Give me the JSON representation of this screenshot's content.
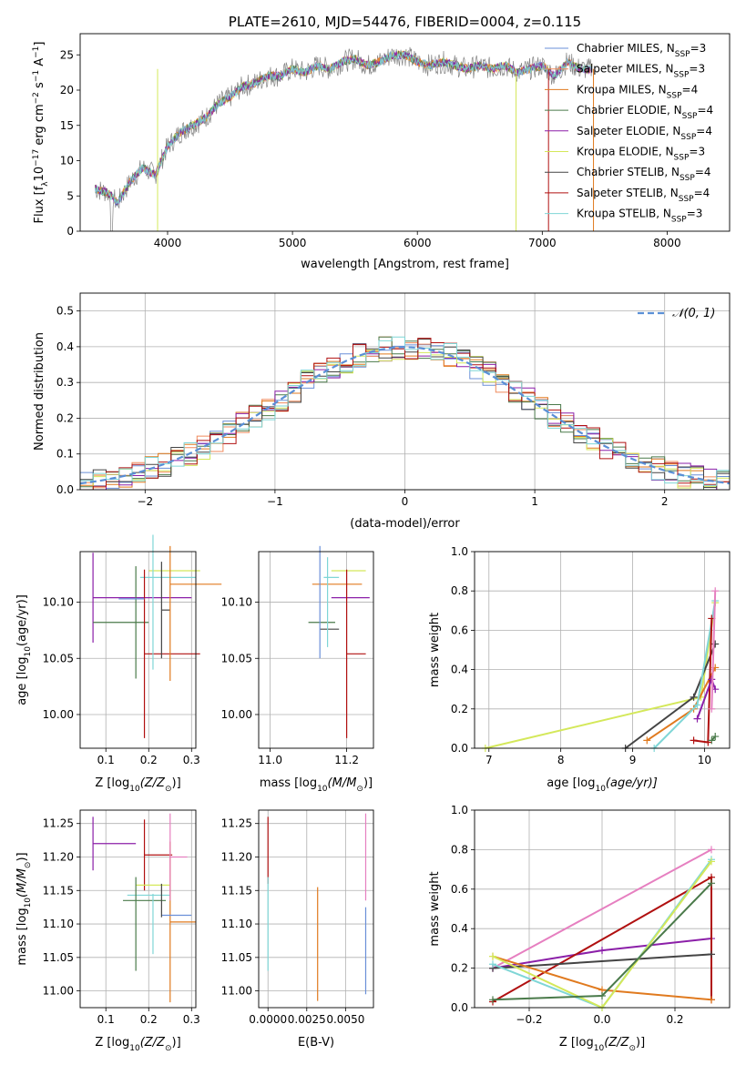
{
  "colors": {
    "chabrier_miles": "#6a8fd8",
    "salpeter_miles": "#f08a5c",
    "kroupa_miles": "#e07a1f",
    "chabrier_elodie": "#4a7a4a",
    "salpeter_elodie": "#8b1fa8",
    "kroupa_elodie": "#d4e85a",
    "chabrier_stelib": "#444444",
    "salpeter_stelib": "#b01010",
    "kroupa_stelib": "#7fd6d6",
    "spectrum_gray": "#777777",
    "pink": "#e67fc0",
    "normal": "#5a8fd6",
    "grid": "#b0b0b0"
  },
  "chart_data": [
    {
      "id": "spectrum",
      "type": "line",
      "title": "PLATE=2610, MJD=54476, FIBERID=0004, z=0.115",
      "xlabel": "wavelength [Angstrom, rest frame]",
      "ylabel_main": "Flux [f",
      "ylabel_sub": "λ",
      "ylabel_rest": "10",
      "ylabel_exp": "−17",
      "ylabel_tail": " erg cm",
      "ylabel_exp2": "−2",
      "ylabel_mid": " s",
      "ylabel_exp3": "−1",
      "ylabel_end": " A",
      "ylabel_exp4": "−1",
      "ylabel_close": "]",
      "xlim": [
        3300,
        8500
      ],
      "ylim": [
        0,
        28
      ],
      "xticks": [
        "4000",
        "5000",
        "6000",
        "7000",
        "8000"
      ],
      "yticks": [
        "0",
        "5",
        "10",
        "15",
        "20",
        "25"
      ],
      "legend": [
        {
          "name": "Chabrier MILES, N",
          "sub": "SSP",
          "suffix": "=3",
          "color_key": "chabrier_miles"
        },
        {
          "name": "Salpeter MILES, N",
          "sub": "SSP",
          "suffix": "=3",
          "color_key": "salpeter_miles"
        },
        {
          "name": "Kroupa MILES, N",
          "sub": "SSP",
          "suffix": "=4",
          "color_key": "kroupa_miles"
        },
        {
          "name": "Chabrier ELODIE, N",
          "sub": "SSP",
          "suffix": "=4",
          "color_key": "chabrier_elodie"
        },
        {
          "name": "Salpeter ELODIE, N",
          "sub": "SSP",
          "suffix": "=4",
          "color_key": "salpeter_elodie"
        },
        {
          "name": "Kroupa ELODIE, N",
          "sub": "SSP",
          "suffix": "=3",
          "color_key": "kroupa_elodie"
        },
        {
          "name": "Chabrier STELIB, N",
          "sub": "SSP",
          "suffix": "=4",
          "color_key": "chabrier_stelib"
        },
        {
          "name": "Salpeter STELIB, N",
          "sub": "SSP",
          "suffix": "=4",
          "color_key": "salpeter_stelib"
        },
        {
          "name": "Kroupa STELIB, N",
          "sub": "SSP",
          "suffix": "=3",
          "color_key": "kroupa_stelib"
        }
      ],
      "legend_position": "right",
      "series_envelope": {
        "x": [
          3420,
          3520,
          3600,
          3700,
          3800,
          3900,
          4000,
          4100,
          4200,
          4300,
          4400,
          4500,
          4600,
          4700,
          4800,
          4900,
          5000,
          5100,
          5200,
          5300,
          5400,
          5500,
          5600,
          5700,
          5800,
          5900,
          6000,
          6100,
          6200,
          6300,
          6400,
          6500,
          6600,
          6700,
          6800,
          6900,
          7000,
          7100,
          7200,
          7300,
          7400
        ],
        "y": [
          6,
          5.5,
          4,
          7,
          9,
          8,
          12,
          14,
          15,
          16,
          18,
          19,
          20.5,
          21,
          22,
          22,
          23,
          22.5,
          23.5,
          23,
          24,
          24.5,
          23.5,
          24,
          25,
          25,
          24,
          23.5,
          24,
          23.5,
          23,
          23.5,
          23,
          23.5,
          22.5,
          23,
          23.5,
          22,
          24,
          23,
          23
        ]
      }
    },
    {
      "id": "residuals",
      "type": "line",
      "xlabel": "(data-model)/error",
      "ylabel": "Normed distribution",
      "xlim": [
        -2.5,
        2.5
      ],
      "ylim": [
        0,
        0.55
      ],
      "xticks": [
        "−2",
        "−1",
        "0",
        "1",
        "2"
      ],
      "yticks": [
        "0.0",
        "0.1",
        "0.2",
        "0.3",
        "0.4",
        "0.5"
      ],
      "legend_label": "𝒩(0, 1)",
      "legend_position": "top-right",
      "grid": true
    },
    {
      "id": "age_vs_Z",
      "type": "scatter",
      "xlabel": "Z [log",
      "xlabel_sub": "10",
      "xlabel_tail": "(Z/Z",
      "xlabel_sun": "⊙",
      "xlabel_close": ")]",
      "ylabel": "age  [log",
      "ylabel_sub": "10",
      "ylabel_tail": "(age/yr)]",
      "xlim": [
        0.04,
        0.31
      ],
      "ylim": [
        9.97,
        10.145
      ],
      "xticks": [
        "0.1",
        "0.2",
        "0.3"
      ],
      "yticks": [
        "10.00",
        "10.05",
        "10.10"
      ],
      "points": [
        {
          "x": 0.07,
          "y": 10.104,
          "xerr": 0.23,
          "yerr": 0.04,
          "color_key": "salpeter_elodie"
        },
        {
          "x": 0.07,
          "y": 10.082,
          "xerr": 0.13,
          "yerr": 0.0,
          "color_key": "chabrier_elodie"
        },
        {
          "x": 0.18,
          "y": 10.122,
          "xerr": 0.13,
          "yerr": 0.0,
          "color_key": "kroupa_stelib"
        },
        {
          "x": 0.2,
          "y": 10.128,
          "xerr": 0.12,
          "yerr": 0.0,
          "color_key": "kroupa_elodie"
        },
        {
          "x": 0.25,
          "y": 10.116,
          "xerr": 0.12,
          "yerr": 0.0,
          "color_key": "kroupa_miles"
        },
        {
          "x": 0.19,
          "y": 10.054,
          "xerr": 0.13,
          "yerr": 0.075,
          "color_key": "salpeter_stelib"
        },
        {
          "x": 0.23,
          "y": 10.093,
          "xerr": 0.02,
          "yerr": 0.043,
          "color_key": "chabrier_stelib"
        },
        {
          "x": 0.17,
          "y": 10.082,
          "xerr": 0.0,
          "yerr": 0.05,
          "color_key": "chabrier_elodie"
        },
        {
          "x": 0.21,
          "y": 10.1,
          "xerr": 0.0,
          "yerr": 0.06,
          "color_key": "kroupa_stelib"
        },
        {
          "x": 0.25,
          "y": 10.09,
          "xerr": 0.0,
          "yerr": 0.06,
          "color_key": "kroupa_miles"
        },
        {
          "x": 0.13,
          "y": 10.103,
          "xerr": 0.06,
          "yerr": 0.0,
          "color_key": "chabrier_miles"
        }
      ]
    },
    {
      "id": "age_vs_mass",
      "type": "scatter",
      "xlabel": "mass [log",
      "xlabel_sub": "10",
      "xlabel_tail": "(M/M",
      "xlabel_sun": "⊙",
      "xlabel_close": ")]",
      "xlim": [
        10.97,
        11.27
      ],
      "ylim": [
        9.97,
        10.145
      ],
      "xticks": [
        "11.0",
        "11.2"
      ],
      "yticks": [
        "10.00",
        "10.05",
        "10.10"
      ],
      "points": [
        {
          "x": 11.11,
          "y": 10.116,
          "xerr": 0.13,
          "yerr": 0.0,
          "color_key": "kroupa_miles"
        },
        {
          "x": 11.16,
          "y": 10.128,
          "xerr": 0.09,
          "yerr": 0.0,
          "color_key": "kroupa_elodie"
        },
        {
          "x": 11.14,
          "y": 10.122,
          "xerr": 0.04,
          "yerr": 0.0,
          "color_key": "kroupa_stelib"
        },
        {
          "x": 11.16,
          "y": 10.104,
          "xerr": 0.1,
          "yerr": 0.0,
          "color_key": "salpeter_elodie"
        },
        {
          "x": 11.2,
          "y": 10.054,
          "xerr": 0.05,
          "yerr": 0.075,
          "color_key": "salpeter_stelib"
        },
        {
          "x": 11.1,
          "y": 10.082,
          "xerr": 0.07,
          "yerr": 0.0,
          "color_key": "chabrier_elodie"
        },
        {
          "x": 11.13,
          "y": 10.076,
          "xerr": 0.05,
          "yerr": 0.0,
          "color_key": "chabrier_stelib"
        },
        {
          "x": 11.13,
          "y": 10.1,
          "xerr": 0.0,
          "yerr": 0.05,
          "color_key": "chabrier_miles"
        },
        {
          "x": 11.15,
          "y": 10.1,
          "xerr": 0.0,
          "yerr": 0.04,
          "color_key": "kroupa_stelib"
        }
      ]
    },
    {
      "id": "massweight_vs_age",
      "type": "line",
      "xlabel": "age  [log",
      "xlabel_sub": "10",
      "xlabel_tail": "(age/yr)]",
      "ylabel": "mass weight",
      "xlim": [
        6.8,
        10.35
      ],
      "ylim": [
        0,
        1.0
      ],
      "xticks": [
        "7",
        "8",
        "9",
        "10"
      ],
      "yticks": [
        "0.0",
        "0.2",
        "0.4",
        "0.6",
        "0.8",
        "1.0"
      ],
      "series": [
        {
          "color_key": "kroupa_elodie",
          "x": [
            6.95,
            9.95,
            10.15
          ],
          "y": [
            0.0,
            0.26,
            0.74
          ]
        },
        {
          "color_key": "chabrier_stelib",
          "x": [
            8.9,
            9.85,
            10.15
          ],
          "y": [
            0.0,
            0.26,
            0.53
          ]
        },
        {
          "color_key": "kroupa_miles",
          "x": [
            9.2,
            9.85,
            10.15
          ],
          "y": [
            0.04,
            0.2,
            0.41
          ]
        },
        {
          "color_key": "kroupa_stelib",
          "x": [
            9.3,
            9.9,
            10.15
          ],
          "y": [
            0.0,
            0.22,
            0.75
          ]
        },
        {
          "color_key": "salpeter_stelib",
          "x": [
            9.85,
            10.05,
            10.1
          ],
          "y": [
            0.04,
            0.03,
            0.66
          ]
        },
        {
          "color_key": "salpeter_elodie",
          "x": [
            9.9,
            10.1,
            10.15
          ],
          "y": [
            0.15,
            0.35,
            0.3
          ]
        },
        {
          "color_key": "pink",
          "x": [
            10.1,
            10.15
          ],
          "y": [
            0.2,
            0.8
          ]
        },
        {
          "color_key": "chabrier_elodie",
          "x": [
            10.1,
            10.15
          ],
          "y": [
            0.04,
            0.06
          ]
        }
      ]
    },
    {
      "id": "mass_vs_Z",
      "type": "scatter",
      "xlabel": "Z [log",
      "xlabel_sub": "10",
      "xlabel_tail": "(Z/Z",
      "xlabel_sun": "⊙",
      "xlabel_close": ")]",
      "ylabel": "mass [log",
      "ylabel_sub": "10",
      "ylabel_tail": "(M/M",
      "ylabel_sun": "⊙",
      "ylabel_close": ")]",
      "xlim": [
        0.04,
        0.31
      ],
      "ylim": [
        10.975,
        11.27
      ],
      "xticks": [
        "0.1",
        "0.2",
        "0.3"
      ],
      "yticks": [
        "11.00",
        "11.05",
        "11.10",
        "11.15",
        "11.20",
        "11.25"
      ],
      "points": [
        {
          "x": 0.07,
          "y": 11.22,
          "xerr": 0.1,
          "yerr": 0.04,
          "color_key": "salpeter_elodie"
        },
        {
          "x": 0.19,
          "y": 11.203,
          "xerr": 0.065,
          "yerr": 0.053,
          "color_key": "salpeter_stelib"
        },
        {
          "x": 0.17,
          "y": 11.158,
          "xerr": 0.08,
          "yerr": 0.0,
          "color_key": "kroupa_elodie"
        },
        {
          "x": 0.15,
          "y": 11.143,
          "xerr": 0.1,
          "yerr": 0.0,
          "color_key": "kroupa_stelib"
        },
        {
          "x": 0.14,
          "y": 11.135,
          "xerr": 0.1,
          "yerr": 0.0,
          "color_key": "chabrier_elodie"
        },
        {
          "x": 0.25,
          "y": 11.103,
          "xerr": 0.06,
          "yerr": 0.12,
          "color_key": "kroupa_miles"
        },
        {
          "x": 0.23,
          "y": 11.113,
          "xerr": 0.07,
          "yerr": 0.0,
          "color_key": "chabrier_miles"
        },
        {
          "x": 0.17,
          "y": 11.1,
          "xerr": 0.0,
          "yerr": 0.07,
          "color_key": "chabrier_elodie"
        },
        {
          "x": 0.21,
          "y": 11.1,
          "xerr": 0.0,
          "yerr": 0.045,
          "color_key": "kroupa_stelib"
        },
        {
          "x": 0.23,
          "y": 11.135,
          "xerr": 0.0,
          "yerr": 0.025,
          "color_key": "chabrier_stelib"
        },
        {
          "x": 0.25,
          "y": 11.2,
          "xerr": 0.04,
          "yerr": 0.065,
          "color_key": "pink"
        }
      ]
    },
    {
      "id": "mass_vs_ebv",
      "type": "scatter",
      "xlabel": "E(B-V)",
      "xlim": [
        -0.0006,
        0.0068
      ],
      "ylim": [
        10.975,
        11.27
      ],
      "xticks": [
        "0.0000",
        "0.0025",
        "0.0050"
      ],
      "yticks": [
        "11.00",
        "11.05",
        "11.10",
        "11.15",
        "11.20",
        "11.25"
      ],
      "points": [
        {
          "x": 0.0,
          "y": 11.21,
          "xerr": 0.0,
          "yerr": 0.05,
          "color_key": "salpeter_stelib"
        },
        {
          "x": 0.0,
          "y": 11.1,
          "xerr": 0.0,
          "yerr": 0.07,
          "color_key": "kroupa_stelib"
        },
        {
          "x": 0.0032,
          "y": 11.07,
          "xerr": 0.0,
          "yerr": 0.085,
          "color_key": "kroupa_miles"
        },
        {
          "x": 0.0063,
          "y": 11.2,
          "xerr": 0.0,
          "yerr": 0.065,
          "color_key": "pink"
        },
        {
          "x": 0.0063,
          "y": 11.06,
          "xerr": 0.0,
          "yerr": 0.065,
          "color_key": "chabrier_miles"
        }
      ]
    },
    {
      "id": "massweight_vs_Z",
      "type": "line",
      "xlabel": "Z [log",
      "xlabel_sub": "10",
      "xlabel_tail": "(Z/Z",
      "xlabel_sun": "⊙",
      "xlabel_close": ")]",
      "ylabel": "mass weight",
      "xlim": [
        -0.35,
        0.35
      ],
      "ylim": [
        0,
        1.0
      ],
      "xticks": [
        "−0.2",
        "0.0",
        "0.2"
      ],
      "yticks": [
        "0.0",
        "0.2",
        "0.4",
        "0.6",
        "0.8",
        "1.0"
      ],
      "series": [
        {
          "color_key": "pink",
          "x": [
            -0.3,
            0.3
          ],
          "y": [
            0.2,
            0.8
          ]
        },
        {
          "color_key": "salpeter_elodie",
          "x": [
            -0.3,
            0.0,
            0.3
          ],
          "y": [
            0.2,
            0.29,
            0.35
          ]
        },
        {
          "color_key": "salpeter_stelib",
          "x": [
            -0.3,
            0.3,
            0.3
          ],
          "y": [
            0.03,
            0.66,
            0.04
          ]
        },
        {
          "color_key": "chabrier_stelib",
          "x": [
            -0.3,
            0.3
          ],
          "y": [
            0.2,
            0.27
          ]
        },
        {
          "color_key": "kroupa_miles",
          "x": [
            -0.3,
            0.0,
            0.3
          ],
          "y": [
            0.26,
            0.09,
            0.04
          ]
        },
        {
          "color_key": "kroupa_stelib",
          "x": [
            -0.3,
            0.0,
            0.3
          ],
          "y": [
            0.22,
            0.0,
            0.75
          ]
        },
        {
          "color_key": "kroupa_elodie",
          "x": [
            -0.3,
            0.0,
            0.3
          ],
          "y": [
            0.26,
            0.0,
            0.74
          ]
        },
        {
          "color_key": "chabrier_elodie",
          "x": [
            -0.3,
            0.0,
            0.3
          ],
          "y": [
            0.04,
            0.06,
            0.63
          ]
        }
      ]
    }
  ]
}
